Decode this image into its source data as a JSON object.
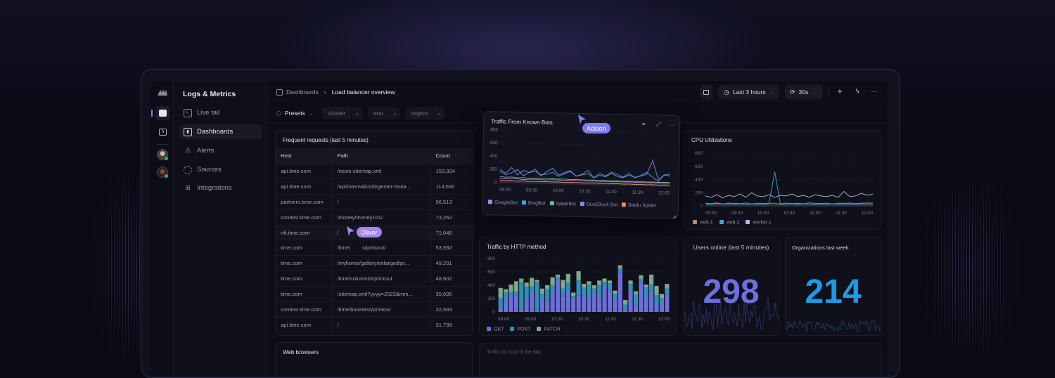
{
  "app": {
    "title": "Logs & Metrics"
  },
  "rail": {
    "items": [
      "logo-icon",
      "logs-app-icon",
      "bolt-app-icon",
      "avatar-1",
      "avatar-2"
    ]
  },
  "sidebar": {
    "items": [
      {
        "label": "Live tail",
        "icon": "terminal-icon"
      },
      {
        "label": "Dashboards",
        "icon": "dashboard-icon",
        "active": true
      },
      {
        "label": "Alerts",
        "icon": "warning-icon"
      },
      {
        "label": "Sources",
        "icon": "sources-icon"
      },
      {
        "label": "Integrations",
        "icon": "integrations-icon"
      }
    ]
  },
  "header": {
    "breadcrumb": {
      "parent": "Dashboards",
      "separator": "›",
      "current": "Load balancer overview"
    },
    "time_range": "Last 3 hours",
    "refresh": "30s"
  },
  "filters": {
    "presets": "Presets",
    "chips": [
      "cluster",
      "env",
      "region"
    ]
  },
  "requests_table": {
    "title": "Frequent requests (last 5 minutes)",
    "columns": [
      "Host",
      "Path",
      "Count"
    ],
    "rows": [
      [
        "api.time.com",
        "/news-sitemap.xml",
        "153,324"
      ],
      [
        "api.time.com",
        "/api/internal/v2/ingester-muta...",
        "114,692"
      ],
      [
        "partners.time.com",
        "/",
        "96,513"
      ],
      [
        "content.time.com",
        "/money/money101/",
        "73,262"
      ],
      [
        "nft.time.com",
        "/",
        "71,048"
      ],
      [
        "time.com",
        "/time/        s/printout/",
        "53,592"
      ],
      [
        "time.com",
        "/myhome/gallery/enlarged/pr...",
        "49,201"
      ],
      [
        "time.com",
        "/time/columnist/printout",
        "48,602"
      ],
      [
        "time.com",
        "/sitemap.xml?yyyy=2023&mm...",
        "35,695"
      ],
      [
        "content.time.com",
        "/time/business/printout",
        "32,593"
      ],
      [
        "api.time.com",
        "/",
        "31,799"
      ]
    ]
  },
  "web_browsers": {
    "title": "Web browsers"
  },
  "traffic_by_hour": {
    "title": "Traffic by hour of the day"
  },
  "users_online": {
    "title": "Users online (last 5 minutes)",
    "value": "298",
    "color": "#6b6fe0"
  },
  "organizations": {
    "title": "Organizations last week",
    "value": "214",
    "color": "#1a9be6"
  },
  "cursors": [
    {
      "name": "Adison",
      "color": "#7c7cf0"
    },
    {
      "name": "Oliver",
      "color": "#a585ee"
    }
  ],
  "chart_data": [
    {
      "type": "line",
      "title": "Traffic From Known Bots",
      "ylim": [
        0,
        800
      ],
      "yticks": [
        "0",
        "200",
        "400",
        "600",
        "800"
      ],
      "xticks": [
        "09:00",
        "09:30",
        "10:00",
        "10:30",
        "11:00",
        "11:30",
        "12:00"
      ],
      "legend": "bottom",
      "series": [
        {
          "name": "GoogleBot",
          "color": "#a98ce8",
          "values": [
            60,
            55,
            58,
            62,
            50,
            57,
            60,
            54,
            52,
            58,
            55,
            50,
            56,
            53,
            50,
            48,
            52,
            47,
            50,
            46,
            49,
            45,
            48,
            44,
            46,
            42,
            45,
            40,
            44,
            42
          ]
        },
        {
          "name": "BingBot",
          "color": "#38a8d8",
          "values": [
            200,
            140,
            230,
            120,
            190,
            160,
            210,
            110,
            180,
            230,
            130,
            170,
            200,
            120,
            150,
            210,
            100,
            170,
            130,
            190,
            160,
            120,
            180,
            110,
            150,
            200,
            130,
            60,
            170,
            150
          ]
        },
        {
          "name": "AppleBot",
          "color": "#6fb59a",
          "values": [
            90,
            80,
            85,
            75,
            80,
            70,
            78,
            72,
            70,
            75,
            68,
            70,
            66,
            68,
            65,
            62,
            66,
            60,
            63,
            58,
            62,
            56,
            60,
            55,
            58,
            52,
            55,
            50,
            54,
            52
          ]
        },
        {
          "name": "DuckDuck Bot",
          "color": "#8c86f0",
          "values": [
            170,
            120,
            150,
            200,
            110,
            160,
            180,
            130,
            140,
            170,
            110,
            150,
            190,
            120,
            140,
            160,
            100,
            140,
            120,
            170,
            130,
            110,
            150,
            120,
            140,
            170,
            380,
            90,
            160,
            180
          ]
        },
        {
          "name": "Baidu Spider",
          "color": "#f08a60",
          "values": [
            30,
            28,
            32,
            26,
            30,
            25,
            28,
            24,
            27,
            22,
            26,
            20,
            24,
            22,
            20,
            18,
            22,
            16,
            20,
            15,
            18,
            14,
            16,
            12,
            15,
            10,
            14,
            8,
            12,
            10
          ]
        }
      ]
    },
    {
      "type": "line",
      "title": "CPU Utilizations",
      "ylim": [
        0,
        800
      ],
      "yticks": [
        "0",
        "200",
        "400",
        "600",
        "800"
      ],
      "xticks": [
        "09:00",
        "09:30",
        "10:00",
        "10:30",
        "11:00",
        "11:30",
        "12:00"
      ],
      "legend": "bottom",
      "series": [
        {
          "name": "web.1",
          "color": "#c08a70",
          "values": [
            40,
            35,
            45,
            30,
            42,
            38,
            35,
            44,
            30,
            40,
            36,
            42,
            38,
            30,
            44,
            35,
            40,
            32,
            45,
            38,
            36,
            42,
            30,
            40,
            38,
            44,
            35,
            40,
            45,
            42
          ]
        },
        {
          "name": "web.2",
          "color": "#38a8d8",
          "values": [
            30,
            25,
            35,
            28,
            30,
            22,
            32,
            26,
            30,
            28,
            24,
            30,
            520,
            20,
            28,
            32,
            25,
            30,
            28,
            22,
            30,
            26,
            32,
            24,
            28,
            30,
            25,
            28,
            30,
            26
          ]
        },
        {
          "name": "worker.1",
          "color": "#b8b4e8",
          "values": [
            150,
            130,
            170,
            120,
            160,
            140,
            180,
            130,
            200,
            150,
            140,
            170,
            130,
            160,
            150,
            180,
            140,
            160,
            130,
            170,
            150,
            140,
            160,
            130,
            220,
            140,
            150,
            190,
            160,
            180
          ]
        }
      ]
    },
    {
      "type": "bar",
      "stacked": true,
      "title": "Traffic by HTTP method",
      "ylim": [
        0,
        800
      ],
      "yticks": [
        "0",
        "200",
        "400",
        "600",
        "800"
      ],
      "xticks": [
        "09:00",
        "09:30",
        "10:00",
        "10:30",
        "11:00",
        "11:30",
        "12:00"
      ],
      "legend": "bottom",
      "series": [
        {
          "name": "GET",
          "color": "#6b6fd8",
          "values": [
            60,
            190,
            260,
            250,
            50,
            180,
            300,
            30,
            210,
            160,
            310,
            480,
            240,
            320,
            190,
            250,
            280,
            210,
            300,
            210,
            390,
            330,
            210,
            580,
            50,
            310,
            110,
            450,
            210,
            310,
            100,
            160,
            260
          ]
        },
        {
          "name": "POST",
          "color": "#2f8fb8",
          "values": [
            150,
            110,
            40,
            60,
            400,
            200,
            80,
            420,
            60,
            180,
            90,
            40,
            110,
            120,
            50,
            230,
            80,
            200,
            50,
            200,
            60,
            100,
            60,
            70,
            60,
            110,
            150,
            50,
            160,
            100,
            150,
            50,
            90
          ]
        },
        {
          "name": "PATCH",
          "color": "#7fa888",
          "values": [
            150,
            40,
            110,
            150,
            50,
            60,
            130,
            30,
            80,
            60,
            120,
            40,
            130,
            130,
            50,
            130,
            60,
            50,
            50,
            60,
            50,
            40,
            50,
            50,
            70,
            50,
            50,
            50,
            40,
            150,
            140,
            60,
            70
          ]
        }
      ]
    }
  ]
}
